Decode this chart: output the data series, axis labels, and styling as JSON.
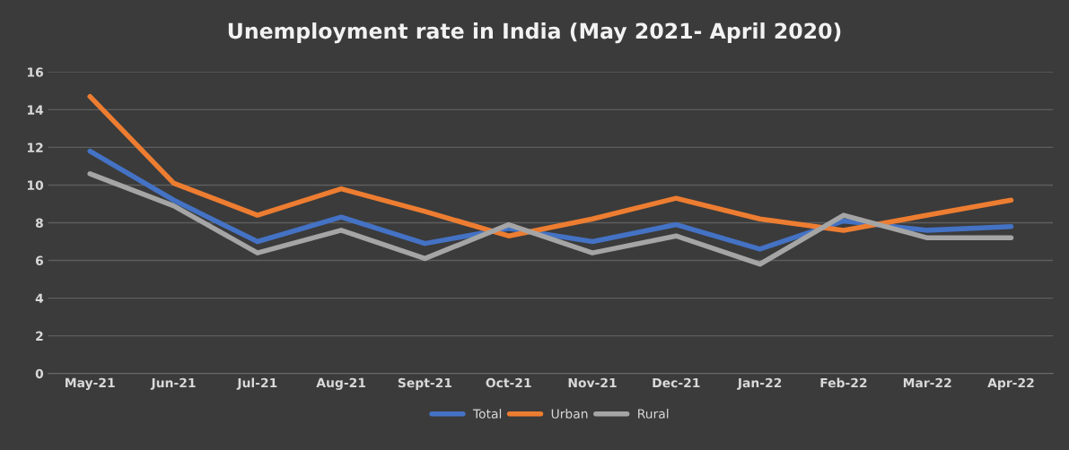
{
  "chart_data": {
    "type": "line",
    "title": "Unemployment rate in India (May 2021- April 2020)",
    "categories": [
      "May-21",
      "Jun-21",
      "Jul-21",
      "Aug-21",
      "Sept-21",
      "Oct-21",
      "Nov-21",
      "Dec-21",
      "Jan-22",
      "Feb-22",
      "Mar-22",
      "Apr-22"
    ],
    "series": [
      {
        "name": "Total",
        "color": "#4472c4",
        "values": [
          11.8,
          9.2,
          7.0,
          8.3,
          6.9,
          7.7,
          7.0,
          7.9,
          6.6,
          8.1,
          7.6,
          7.8
        ]
      },
      {
        "name": "Urban",
        "color": "#ed7d31",
        "values": [
          14.7,
          10.1,
          8.4,
          9.8,
          8.6,
          7.3,
          8.2,
          9.3,
          8.2,
          7.6,
          8.4,
          9.2
        ]
      },
      {
        "name": "Rural",
        "color": "#a5a5a5",
        "values": [
          10.6,
          8.9,
          6.4,
          7.6,
          6.1,
          7.9,
          6.4,
          7.3,
          5.8,
          8.4,
          7.2,
          7.2
        ]
      }
    ],
    "ylim": [
      0,
      16
    ],
    "yticks": [
      0,
      2,
      4,
      6,
      8,
      10,
      12,
      14,
      16
    ],
    "grid": "y",
    "legend": "bottom",
    "marker": "none",
    "line_style": "solid"
  }
}
